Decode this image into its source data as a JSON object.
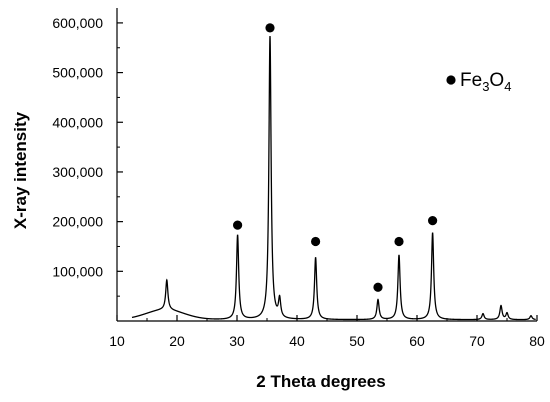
{
  "chart_data": {
    "type": "line",
    "xlabel": "2 Theta degrees",
    "ylabel": "X-ray intensity",
    "xlim": [
      10,
      80
    ],
    "ylim": [
      0,
      630000
    ],
    "x_ticks": [
      10,
      20,
      30,
      40,
      50,
      60,
      70,
      80
    ],
    "x_tick_labels": [
      "10",
      "20",
      "30",
      "40",
      "50",
      "60",
      "70",
      "80"
    ],
    "y_ticks": [
      100000,
      200000,
      300000,
      400000,
      500000,
      600000
    ],
    "y_tick_labels": [
      "100,000",
      "200,000",
      "300,000",
      "400,000",
      "500,000",
      "600,000"
    ],
    "grid": false,
    "legend": {
      "position": "top-right",
      "marker": "filled-circle",
      "label_base": "Fe",
      "label_sub1": "3",
      "label_mid": "O",
      "label_sub2": "4"
    },
    "series": [
      {
        "color": "#000000",
        "peaks": [
          {
            "x": 18.3,
            "y": 60000
          },
          {
            "x": 30.1,
            "y": 170000
          },
          {
            "x": 35.5,
            "y": 570000
          },
          {
            "x": 37.1,
            "y": 38000
          },
          {
            "x": 43.1,
            "y": 125000
          },
          {
            "x": 53.5,
            "y": 40000
          },
          {
            "x": 57.0,
            "y": 130000
          },
          {
            "x": 62.6,
            "y": 175000
          },
          {
            "x": 71.0,
            "y": 12000
          },
          {
            "x": 74.0,
            "y": 28000
          },
          {
            "x": 75.0,
            "y": 13000
          },
          {
            "x": 79.0,
            "y": 8000
          }
        ],
        "background_hump": {
          "center": 18,
          "amplitude": 20000
        }
      }
    ],
    "markers": [
      {
        "x": 30.1,
        "y": 193000
      },
      {
        "x": 35.5,
        "y": 590000
      },
      {
        "x": 43.1,
        "y": 160000
      },
      {
        "x": 53.5,
        "y": 68000
      },
      {
        "x": 57.0,
        "y": 160000
      },
      {
        "x": 62.6,
        "y": 202000
      }
    ]
  }
}
